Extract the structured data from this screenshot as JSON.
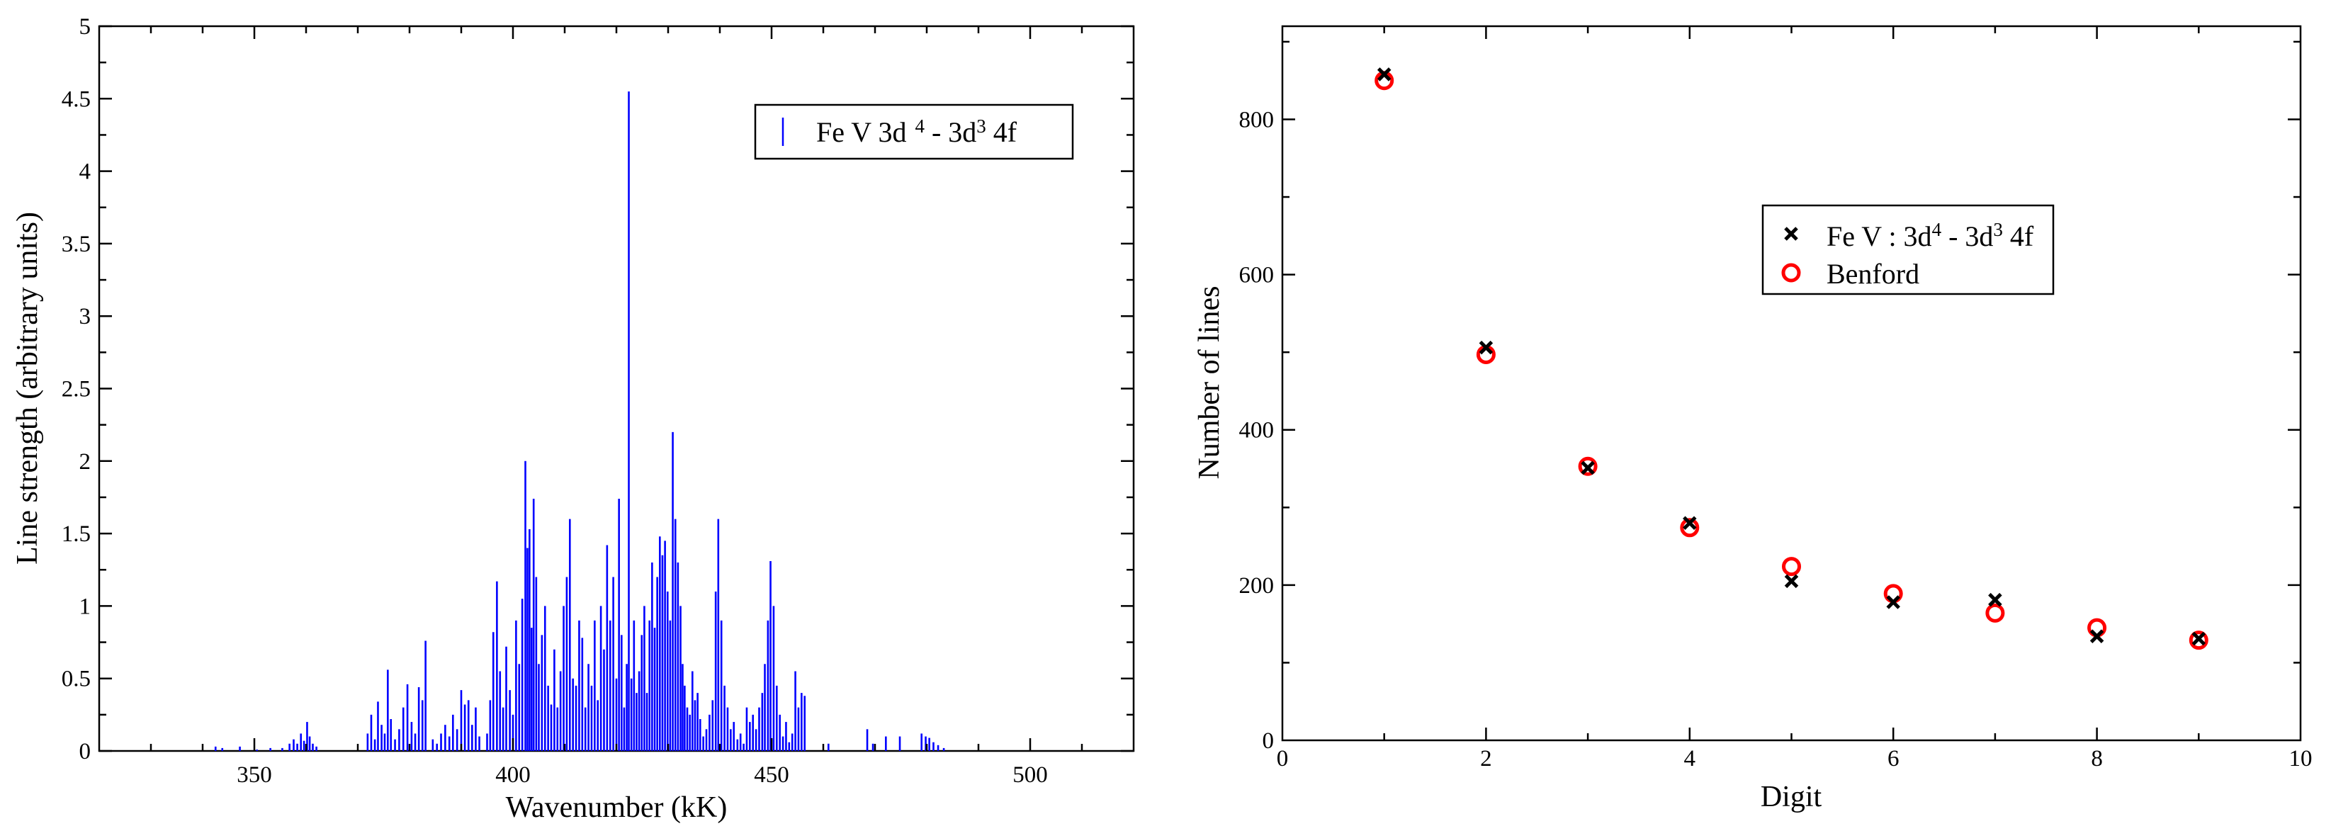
{
  "chart_data": [
    {
      "type": "bar",
      "xlabel": "Wavenumber (kK)",
      "ylabel": "Line strength (arbitrary units)",
      "xlim": [
        320,
        520
      ],
      "ylim": [
        0,
        5
      ],
      "xticks": [
        350,
        400,
        450,
        500
      ],
      "yticks": [
        0,
        0.5,
        1,
        1.5,
        2,
        2.5,
        3,
        3.5,
        4,
        4.5,
        5
      ],
      "ytick_labels": [
        "0",
        "0.5",
        "1",
        "1.5",
        "2",
        "2.5",
        "3",
        "3.5",
        "4",
        "4.5",
        "5"
      ],
      "grid": false,
      "legend_position": "top-right",
      "color": "#0000ff",
      "series": [
        {
          "legend_parts": [
            "Fe V 3d",
            "4",
            " - 3d",
            "3",
            " 4f"
          ],
          "x": [
            342.5,
            343.8,
            347.2,
            350.5,
            353.1,
            355.4,
            356.8,
            357.6,
            358.3,
            359.0,
            359.6,
            360.2,
            360.7,
            361.3,
            362.0,
            371.9,
            372.6,
            373.3,
            373.9,
            374.6,
            375.2,
            375.8,
            376.4,
            377.2,
            378.0,
            378.8,
            379.6,
            380.4,
            381.1,
            381.8,
            382.5,
            383.1,
            384.5,
            385.3,
            386.1,
            386.9,
            387.7,
            388.4,
            389.2,
            390.0,
            390.7,
            391.4,
            392.1,
            392.8,
            393.5,
            395.0,
            395.6,
            396.2,
            396.9,
            397.5,
            398.1,
            398.7,
            399.4,
            400.0,
            400.6,
            401.2,
            401.8,
            402.4,
            402.8,
            403.2,
            403.6,
            404.0,
            404.5,
            405.0,
            405.6,
            406.2,
            406.8,
            407.4,
            408.0,
            408.6,
            409.2,
            409.8,
            410.4,
            411.0,
            411.6,
            412.2,
            412.8,
            413.4,
            414.0,
            414.6,
            415.2,
            415.8,
            416.4,
            417.0,
            417.6,
            418.2,
            418.8,
            419.4,
            420.0,
            420.5,
            421.0,
            421.5,
            422.0,
            422.4,
            422.9,
            423.4,
            423.9,
            424.4,
            424.9,
            425.4,
            425.9,
            426.4,
            426.9,
            427.4,
            427.9,
            428.4,
            428.9,
            429.4,
            429.9,
            430.4,
            430.9,
            431.4,
            431.9,
            432.4,
            432.8,
            433.2,
            433.7,
            434.2,
            434.7,
            435.2,
            435.7,
            436.2,
            436.8,
            437.4,
            438.0,
            438.6,
            439.2,
            439.7,
            440.3,
            440.9,
            441.5,
            442.1,
            442.7,
            443.4,
            444.0,
            444.6,
            445.2,
            445.8,
            446.4,
            447.0,
            447.6,
            448.2,
            448.7,
            449.3,
            449.8,
            450.4,
            451.0,
            451.6,
            452.2,
            452.8,
            453.4,
            454.0,
            454.6,
            455.2,
            455.8,
            456.4,
            461.0,
            468.5,
            469.6,
            472.1,
            474.8,
            479.0,
            479.8,
            480.5,
            481.3,
            482.2,
            483.3
          ],
          "values": [
            0.03,
            0.02,
            0.03,
            0.01,
            0.02,
            0.02,
            0.05,
            0.08,
            0.05,
            0.12,
            0.07,
            0.2,
            0.1,
            0.05,
            0.03,
            0.12,
            0.25,
            0.08,
            0.34,
            0.18,
            0.12,
            0.56,
            0.22,
            0.08,
            0.15,
            0.3,
            0.46,
            0.2,
            0.12,
            0.44,
            0.35,
            0.76,
            0.08,
            0.05,
            0.12,
            0.18,
            0.1,
            0.25,
            0.15,
            0.42,
            0.32,
            0.35,
            0.18,
            0.3,
            0.1,
            0.12,
            0.35,
            0.82,
            1.17,
            0.55,
            0.3,
            0.72,
            0.42,
            0.25,
            0.9,
            0.6,
            1.05,
            2.0,
            1.4,
            1.53,
            0.85,
            1.74,
            1.2,
            0.6,
            0.8,
            1.0,
            0.45,
            0.32,
            0.7,
            0.3,
            0.55,
            1.0,
            1.2,
            1.6,
            0.5,
            0.45,
            0.9,
            0.78,
            0.3,
            0.6,
            0.45,
            0.9,
            0.35,
            1.0,
            0.7,
            1.42,
            0.9,
            1.2,
            0.5,
            1.74,
            0.8,
            0.3,
            0.6,
            4.55,
            0.5,
            0.9,
            0.4,
            0.55,
            0.8,
            1.0,
            0.4,
            0.9,
            1.3,
            0.85,
            1.2,
            1.48,
            1.35,
            1.45,
            1.1,
            0.9,
            2.2,
            1.6,
            1.3,
            1.0,
            0.6,
            0.45,
            0.3,
            0.25,
            0.55,
            0.35,
            0.4,
            0.22,
            0.1,
            0.15,
            0.25,
            0.35,
            1.1,
            1.6,
            0.9,
            0.45,
            0.3,
            0.15,
            0.2,
            0.08,
            0.12,
            0.05,
            0.3,
            0.2,
            0.25,
            0.15,
            0.3,
            0.4,
            0.6,
            0.9,
            1.31,
            1.0,
            0.45,
            0.25,
            0.1,
            0.2,
            0.06,
            0.12,
            0.55,
            0.3,
            0.4,
            0.38,
            0.05,
            0.15,
            0.05,
            0.1,
            0.1,
            0.12,
            0.1,
            0.09,
            0.06,
            0.04,
            0.02
          ]
        }
      ]
    },
    {
      "type": "scatter",
      "xlabel": "Digit",
      "ylabel": "Number of lines",
      "xlim": [
        0,
        10
      ],
      "ylim": [
        0,
        920
      ],
      "xticks": [
        0,
        2,
        4,
        6,
        8,
        10
      ],
      "yticks": [
        0,
        200,
        400,
        600,
        800
      ],
      "grid": false,
      "legend_position": "upper-right",
      "series": [
        {
          "legend_parts": [
            "Fe V : 3d",
            "4",
            " - 3d",
            "3",
            " 4f"
          ],
          "marker": "cross",
          "color": "#000000",
          "x": [
            1,
            2,
            3,
            4,
            5,
            6,
            7,
            8,
            9
          ],
          "values": [
            858,
            506,
            351,
            280,
            205,
            178,
            181,
            134,
            131
          ]
        },
        {
          "name": "Benford",
          "marker": "circle",
          "color": "#ff0000",
          "x": [
            1,
            2,
            3,
            4,
            5,
            6,
            7,
            8,
            9
          ],
          "values": [
            850,
            497,
            353,
            274,
            224,
            189,
            164,
            145,
            129
          ]
        }
      ]
    }
  ]
}
